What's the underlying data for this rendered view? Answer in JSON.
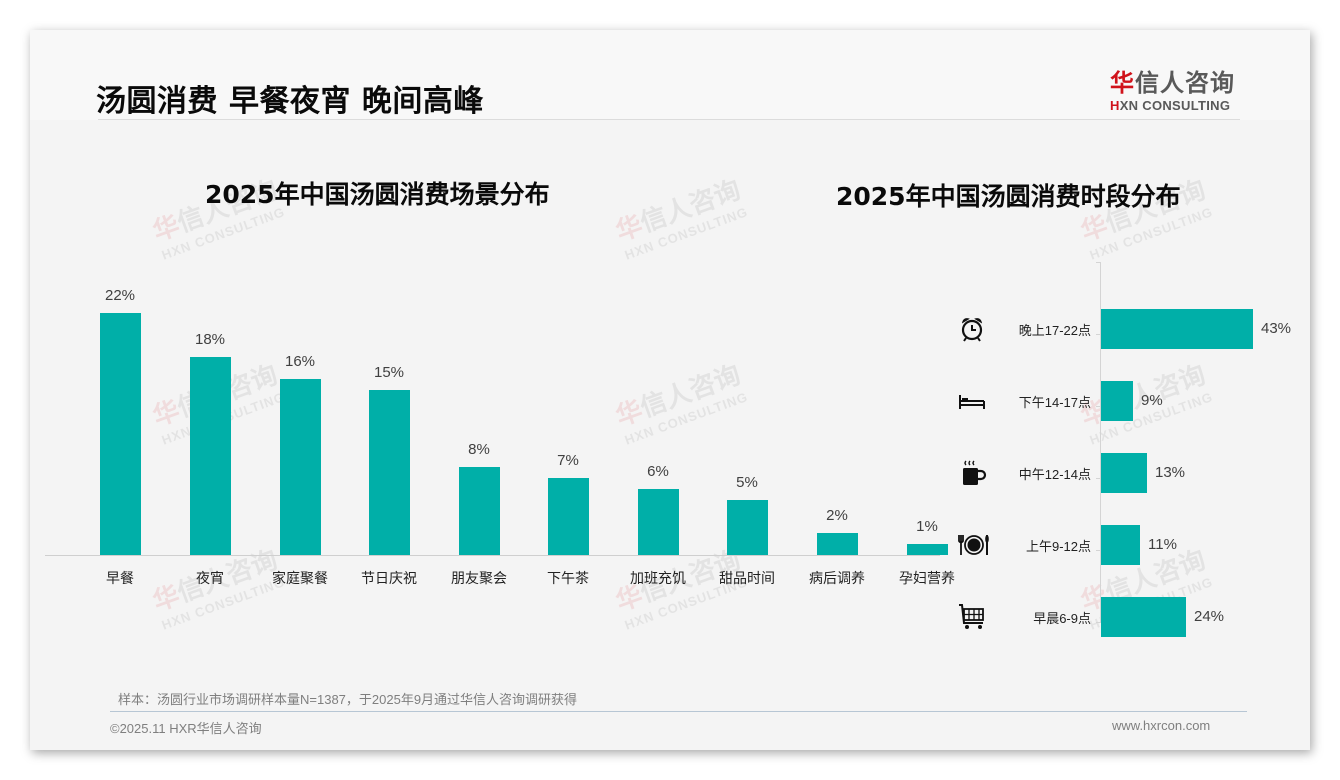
{
  "header": {
    "title": "汤圆消费 早餐夜宵 晚间高峰",
    "logo": {
      "cn_accent": "华",
      "cn_rest": "信人咨询",
      "en_accent": "H",
      "en_rest": "XN CONSULTING"
    }
  },
  "watermark": {
    "cn_accent": "华",
    "cn_rest": "信人咨询",
    "en": "HXN CONSULTING"
  },
  "colors": {
    "bar": "#00afa8",
    "brand_red": "#d0131b",
    "text": "#0a0a0a"
  },
  "chart_data": [
    {
      "type": "bar",
      "title": "2025年中国汤圆消费场景分布",
      "categories": [
        "早餐",
        "夜宵",
        "家庭聚餐",
        "节日庆祝",
        "朋友聚会",
        "下午茶",
        "加班充饥",
        "甜品时间",
        "病后调养",
        "孕妇营养"
      ],
      "values": [
        22,
        18,
        16,
        15,
        8,
        7,
        6,
        5,
        2,
        1
      ],
      "labels": [
        "22%",
        "18%",
        "16%",
        "15%",
        "8%",
        "7%",
        "6%",
        "5%",
        "2%",
        "1%"
      ],
      "unit": "%",
      "xlabel": "",
      "ylabel": "",
      "ylim": [
        0,
        22
      ],
      "grid": false,
      "legend": "none"
    },
    {
      "type": "bar",
      "orientation": "horizontal",
      "title": "2025年中国汤圆消费时段分布",
      "categories": [
        "晚上17-22点",
        "下午14-17点",
        "中午12-14点",
        "上午9-12点",
        "早晨6-9点"
      ],
      "icons": [
        "alarm-clock-icon",
        "bed-icon",
        "coffee-cup-icon",
        "plate-cutlery-icon",
        "shopping-cart-icon"
      ],
      "values": [
        43,
        9,
        13,
        11,
        24
      ],
      "labels": [
        "43%",
        "9%",
        "13%",
        "11%",
        "24%"
      ],
      "unit": "%",
      "xlabel": "",
      "ylabel": "",
      "xlim": [
        0,
        43
      ],
      "grid": false,
      "legend": "none"
    }
  ],
  "footer": {
    "note": "样本：汤圆行业市场调研样本量N=1387，于2025年9月通过华信人咨询调研获得",
    "copyright": "©2025.11 HXR华信人咨询",
    "website": "www.hxrcon.com"
  }
}
